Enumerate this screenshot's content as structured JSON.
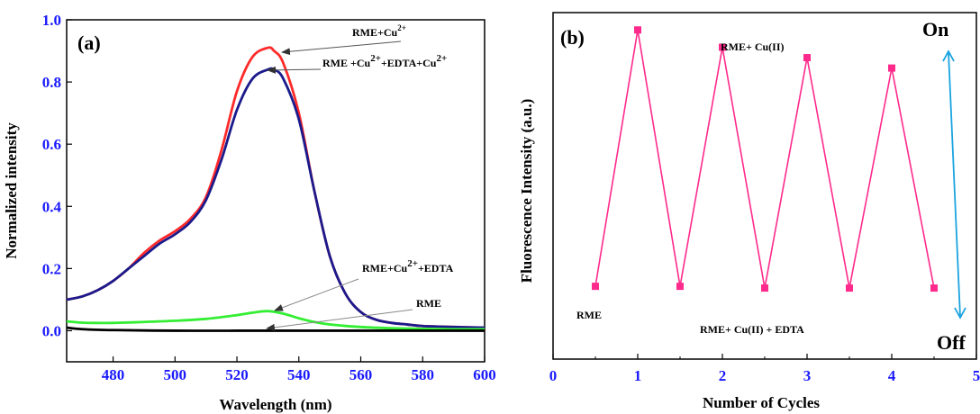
{
  "chart_data": [
    {
      "type": "line",
      "panel_label": "(a)",
      "xlabel": "Wavelength (nm)",
      "ylabel": "Normalized intensity",
      "xlim": [
        465,
        600
      ],
      "ylim": [
        -0.1,
        1.0
      ],
      "xticks": [
        480,
        500,
        520,
        540,
        560,
        580,
        600
      ],
      "yticks": [
        0.0,
        0.2,
        0.4,
        0.6,
        0.8,
        1.0
      ],
      "ytick_labels": [
        "0.0",
        "0.2",
        "0.4",
        "0.6",
        "0.8",
        "1.0"
      ],
      "grid": false,
      "series": [
        {
          "color": "#ff2a2a",
          "x": [
            465,
            470,
            475,
            480,
            485,
            490,
            495,
            500,
            505,
            510,
            515,
            520,
            525,
            530,
            532,
            535,
            540,
            545,
            550,
            555,
            560,
            565,
            570,
            575,
            580,
            590,
            600
          ],
          "y": [
            0.1,
            0.11,
            0.13,
            0.16,
            0.2,
            0.25,
            0.29,
            0.32,
            0.36,
            0.43,
            0.58,
            0.77,
            0.88,
            0.91,
            0.9,
            0.86,
            0.7,
            0.45,
            0.24,
            0.12,
            0.06,
            0.035,
            0.025,
            0.02,
            0.015,
            0.012,
            0.01
          ]
        },
        {
          "color": "#1a1a8c",
          "x": [
            465,
            470,
            475,
            480,
            485,
            490,
            495,
            500,
            505,
            510,
            515,
            520,
            525,
            530,
            532,
            535,
            540,
            545,
            550,
            555,
            560,
            565,
            570,
            575,
            580,
            590,
            600
          ],
          "y": [
            0.1,
            0.11,
            0.13,
            0.16,
            0.2,
            0.24,
            0.28,
            0.31,
            0.35,
            0.42,
            0.55,
            0.71,
            0.81,
            0.84,
            0.84,
            0.81,
            0.68,
            0.45,
            0.24,
            0.12,
            0.06,
            0.035,
            0.025,
            0.02,
            0.015,
            0.012,
            0.01
          ]
        },
        {
          "color": "#33ee33",
          "x": [
            465,
            470,
            475,
            480,
            490,
            500,
            510,
            520,
            525,
            530,
            535,
            540,
            545,
            550,
            560,
            570,
            580,
            590,
            600
          ],
          "y": [
            0.03,
            0.026,
            0.025,
            0.025,
            0.028,
            0.032,
            0.038,
            0.05,
            0.058,
            0.063,
            0.055,
            0.04,
            0.028,
            0.02,
            0.012,
            0.008,
            0.006,
            0.005,
            0.005
          ]
        },
        {
          "color": "#000000",
          "x": [
            465,
            470,
            480,
            500,
            520,
            540,
            560,
            580,
            600
          ],
          "y": [
            0.01,
            0.005,
            0.002,
            0.0,
            0.0,
            0.0,
            0.0,
            0.0,
            0.0
          ]
        }
      ],
      "annotations": [
        {
          "label_base": "RME+Cu",
          "label_sup": "2+",
          "label_rest": ""
        },
        {
          "label_base": "RME +Cu",
          "label_sup": "2+",
          "label_rest": "+EDTA+Cu",
          "label_sup2": "2+"
        },
        {
          "label_base": "RME+Cu",
          "label_sup": "2+",
          "label_rest": "+EDTA"
        },
        {
          "label_base": "RME"
        }
      ]
    },
    {
      "type": "line",
      "panel_label": "(b)",
      "xlabel": "Number of Cycles",
      "ylabel": "Fluorescence Intensity (a.u.)",
      "xlim": [
        0,
        5
      ],
      "xticks": [
        0,
        1,
        2,
        3,
        4,
        5
      ],
      "ylim": [
        0,
        1
      ],
      "grid": false,
      "series": [
        {
          "color": "#ff2a8c",
          "x": [
            0.5,
            1,
            1.5,
            2,
            2.5,
            3,
            3.5,
            4,
            4.5
          ],
          "y": [
            0.21,
            0.95,
            0.21,
            0.9,
            0.205,
            0.87,
            0.205,
            0.84,
            0.205
          ]
        }
      ],
      "annotations": {
        "top": "RME+ Cu(II)",
        "bottom": "RME+ Cu(II) + EDTA",
        "start": "RME",
        "on": "On",
        "off": "Off"
      },
      "arrow_color": "#1aa3e0"
    }
  ]
}
